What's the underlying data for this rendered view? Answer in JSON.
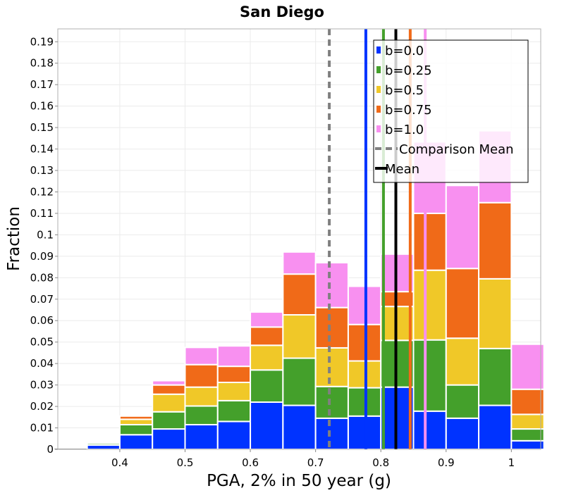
{
  "chart_data": {
    "type": "bar",
    "stacked": true,
    "title": "San Diego",
    "xlabel": "PGA, 2% in 50 year (g)",
    "ylabel": "Fraction",
    "xlim": [
      0.305,
      1.045
    ],
    "ylim": [
      0,
      0.196
    ],
    "x_ticks": [
      "0.4",
      "0.5",
      "0.6",
      "0.7",
      "0.8",
      "0.9",
      "1"
    ],
    "x_tick_values": [
      0.4,
      0.5,
      0.6,
      0.7,
      0.8,
      0.9,
      1.0
    ],
    "y_ticks": [
      "0",
      "0.01",
      "0.02",
      "0.03",
      "0.04",
      "0.05",
      "0.06",
      "0.07",
      "0.08",
      "0.09",
      "0.1",
      "0.11",
      "0.12",
      "0.13",
      "0.14",
      "0.15",
      "0.16",
      "0.17",
      "0.18",
      "0.19"
    ],
    "y_tick_values": [
      0,
      0.01,
      0.02,
      0.03,
      0.04,
      0.05,
      0.06,
      0.07,
      0.08,
      0.09,
      0.1,
      0.11,
      0.12,
      0.13,
      0.14,
      0.15,
      0.16,
      0.17,
      0.18,
      0.19
    ],
    "grid": true,
    "bin_width": 0.05,
    "bin_centers": [
      0.325,
      0.375,
      0.425,
      0.475,
      0.525,
      0.575,
      0.625,
      0.675,
      0.725,
      0.775,
      0.825,
      0.875,
      0.925,
      0.975,
      1.025
    ],
    "series": [
      {
        "name": "b=0.0",
        "color": "#0033ff",
        "values": [
          0.0,
          0.002,
          0.0068,
          0.0095,
          0.0115,
          0.013,
          0.022,
          0.0205,
          0.0145,
          0.0155,
          0.029,
          0.0178,
          0.0145,
          0.0205,
          0.004
        ]
      },
      {
        "name": "b=0.25",
        "color": "#44a02b",
        "values": [
          0.0,
          0.0008,
          0.0047,
          0.008,
          0.0087,
          0.0097,
          0.015,
          0.022,
          0.0148,
          0.0132,
          0.0218,
          0.0332,
          0.0155,
          0.0265,
          0.0055
        ]
      },
      {
        "name": "b=0.5",
        "color": "#f0c828",
        "values": [
          0.0,
          0.0,
          0.0025,
          0.0082,
          0.0088,
          0.0085,
          0.0115,
          0.0202,
          0.018,
          0.0125,
          0.0158,
          0.0325,
          0.0218,
          0.0325,
          0.0068
        ]
      },
      {
        "name": "b=0.75",
        "color": "#f06a18",
        "values": [
          0.0,
          0.0,
          0.0015,
          0.0043,
          0.0105,
          0.0075,
          0.0085,
          0.019,
          0.0188,
          0.017,
          0.0069,
          0.0265,
          0.0325,
          0.0355,
          0.0117
        ]
      },
      {
        "name": "b=1.0",
        "color": "#f890f0",
        "values": [
          0.0,
          0.0,
          0.0,
          0.002,
          0.008,
          0.0095,
          0.007,
          0.0103,
          0.0209,
          0.0178,
          0.0175,
          0.0333,
          0.0387,
          0.0335,
          0.021
        ]
      }
    ],
    "vlines": [
      {
        "name": "b=0.0 mean",
        "x": 0.777,
        "color": "#0033ff",
        "style": "solid"
      },
      {
        "name": "b=0.25 mean",
        "x": 0.804,
        "color": "#44a02b",
        "style": "solid"
      },
      {
        "name": "b=0.75 mean",
        "x": 0.845,
        "color": "#f06a18",
        "style": "solid"
      },
      {
        "name": "b=1.0 mean",
        "x": 0.868,
        "color": "#f890f0",
        "style": "solid"
      },
      {
        "name": "Comparison Mean",
        "x": 0.721,
        "color": "#808080",
        "style": "dashed"
      },
      {
        "name": "Mean",
        "x": 0.823,
        "color": "#000000",
        "style": "solid"
      }
    ],
    "legend": {
      "position": "top-right",
      "items": [
        {
          "label": "b=0.0",
          "color": "#0033ff",
          "kind": "box"
        },
        {
          "label": "b=0.25",
          "color": "#44a02b",
          "kind": "box"
        },
        {
          "label": "b=0.5",
          "color": "#f0c828",
          "kind": "box"
        },
        {
          "label": "b=0.75",
          "color": "#f06a18",
          "kind": "box"
        },
        {
          "label": "b=1.0",
          "color": "#f890f0",
          "kind": "box"
        },
        {
          "label": "Comparison Mean",
          "color": "#808080",
          "kind": "dashed-line"
        },
        {
          "label": "Mean",
          "color": "#000000",
          "kind": "line"
        }
      ]
    }
  }
}
